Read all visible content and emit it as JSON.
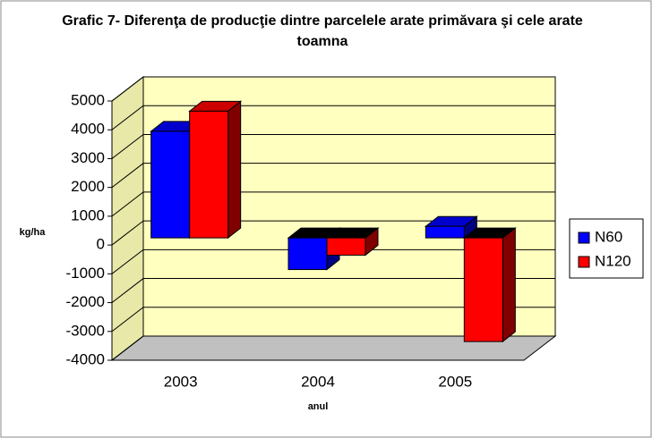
{
  "chart_data": {
    "type": "bar3d",
    "title": "Grafic 7- Diferenţa de producţie dintre parcelele arate primăvara şi cele arate toamna",
    "y_label": "kg/ha",
    "x_label": "anul",
    "categories": [
      "2003",
      "2004",
      "2005"
    ],
    "series": [
      {
        "name": "N60",
        "color": "#0000ff",
        "values": [
          3700,
          -1100,
          400
        ]
      },
      {
        "name": "N120",
        "color": "#ff0000",
        "values": [
          4400,
          -600,
          -3600
        ]
      }
    ],
    "ylim": [
      -4000,
      5000
    ],
    "yticks": [
      -4000,
      -3000,
      -2000,
      -1000,
      0,
      1000,
      2000,
      3000,
      4000,
      5000
    ],
    "grid": true,
    "legend": "right"
  }
}
